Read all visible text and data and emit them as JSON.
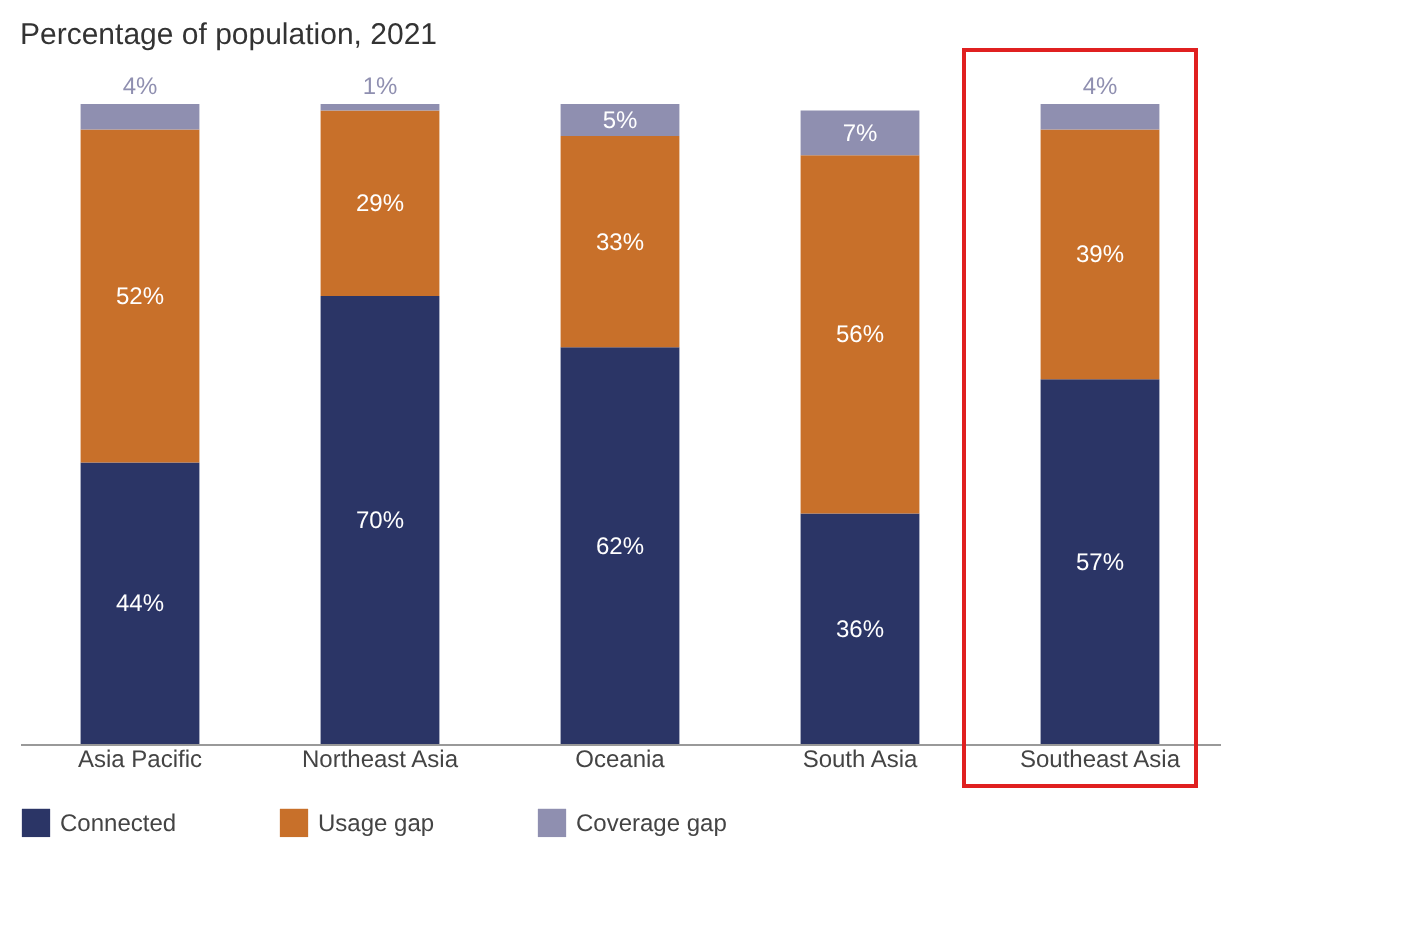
{
  "chart_data": {
    "type": "bar",
    "stacked": true,
    "title": "Percentage of population, 2021",
    "categories": [
      "Asia Pacific",
      "Northeast Asia",
      "Oceania",
      "South Asia",
      "Southeast Asia"
    ],
    "series": [
      {
        "name": "Connected",
        "color": "#2b3566",
        "values": [
          44,
          70,
          62,
          36,
          57
        ],
        "value_labels": [
          "44%",
          "70%",
          "62%",
          "36%",
          "57%"
        ]
      },
      {
        "name": "Usage gap",
        "color": "#c8702a",
        "values": [
          52,
          29,
          33,
          56,
          39
        ],
        "value_labels": [
          "52%",
          "29%",
          "33%",
          "56%",
          "39%"
        ]
      },
      {
        "name": "Coverage gap",
        "color": "#8f8fb0",
        "values": [
          4,
          1,
          5,
          7,
          4
        ],
        "value_labels": [
          "4%",
          "1%",
          "5%",
          "7%",
          "4%"
        ]
      }
    ],
    "legend": "bottom",
    "grid": false
  }
}
